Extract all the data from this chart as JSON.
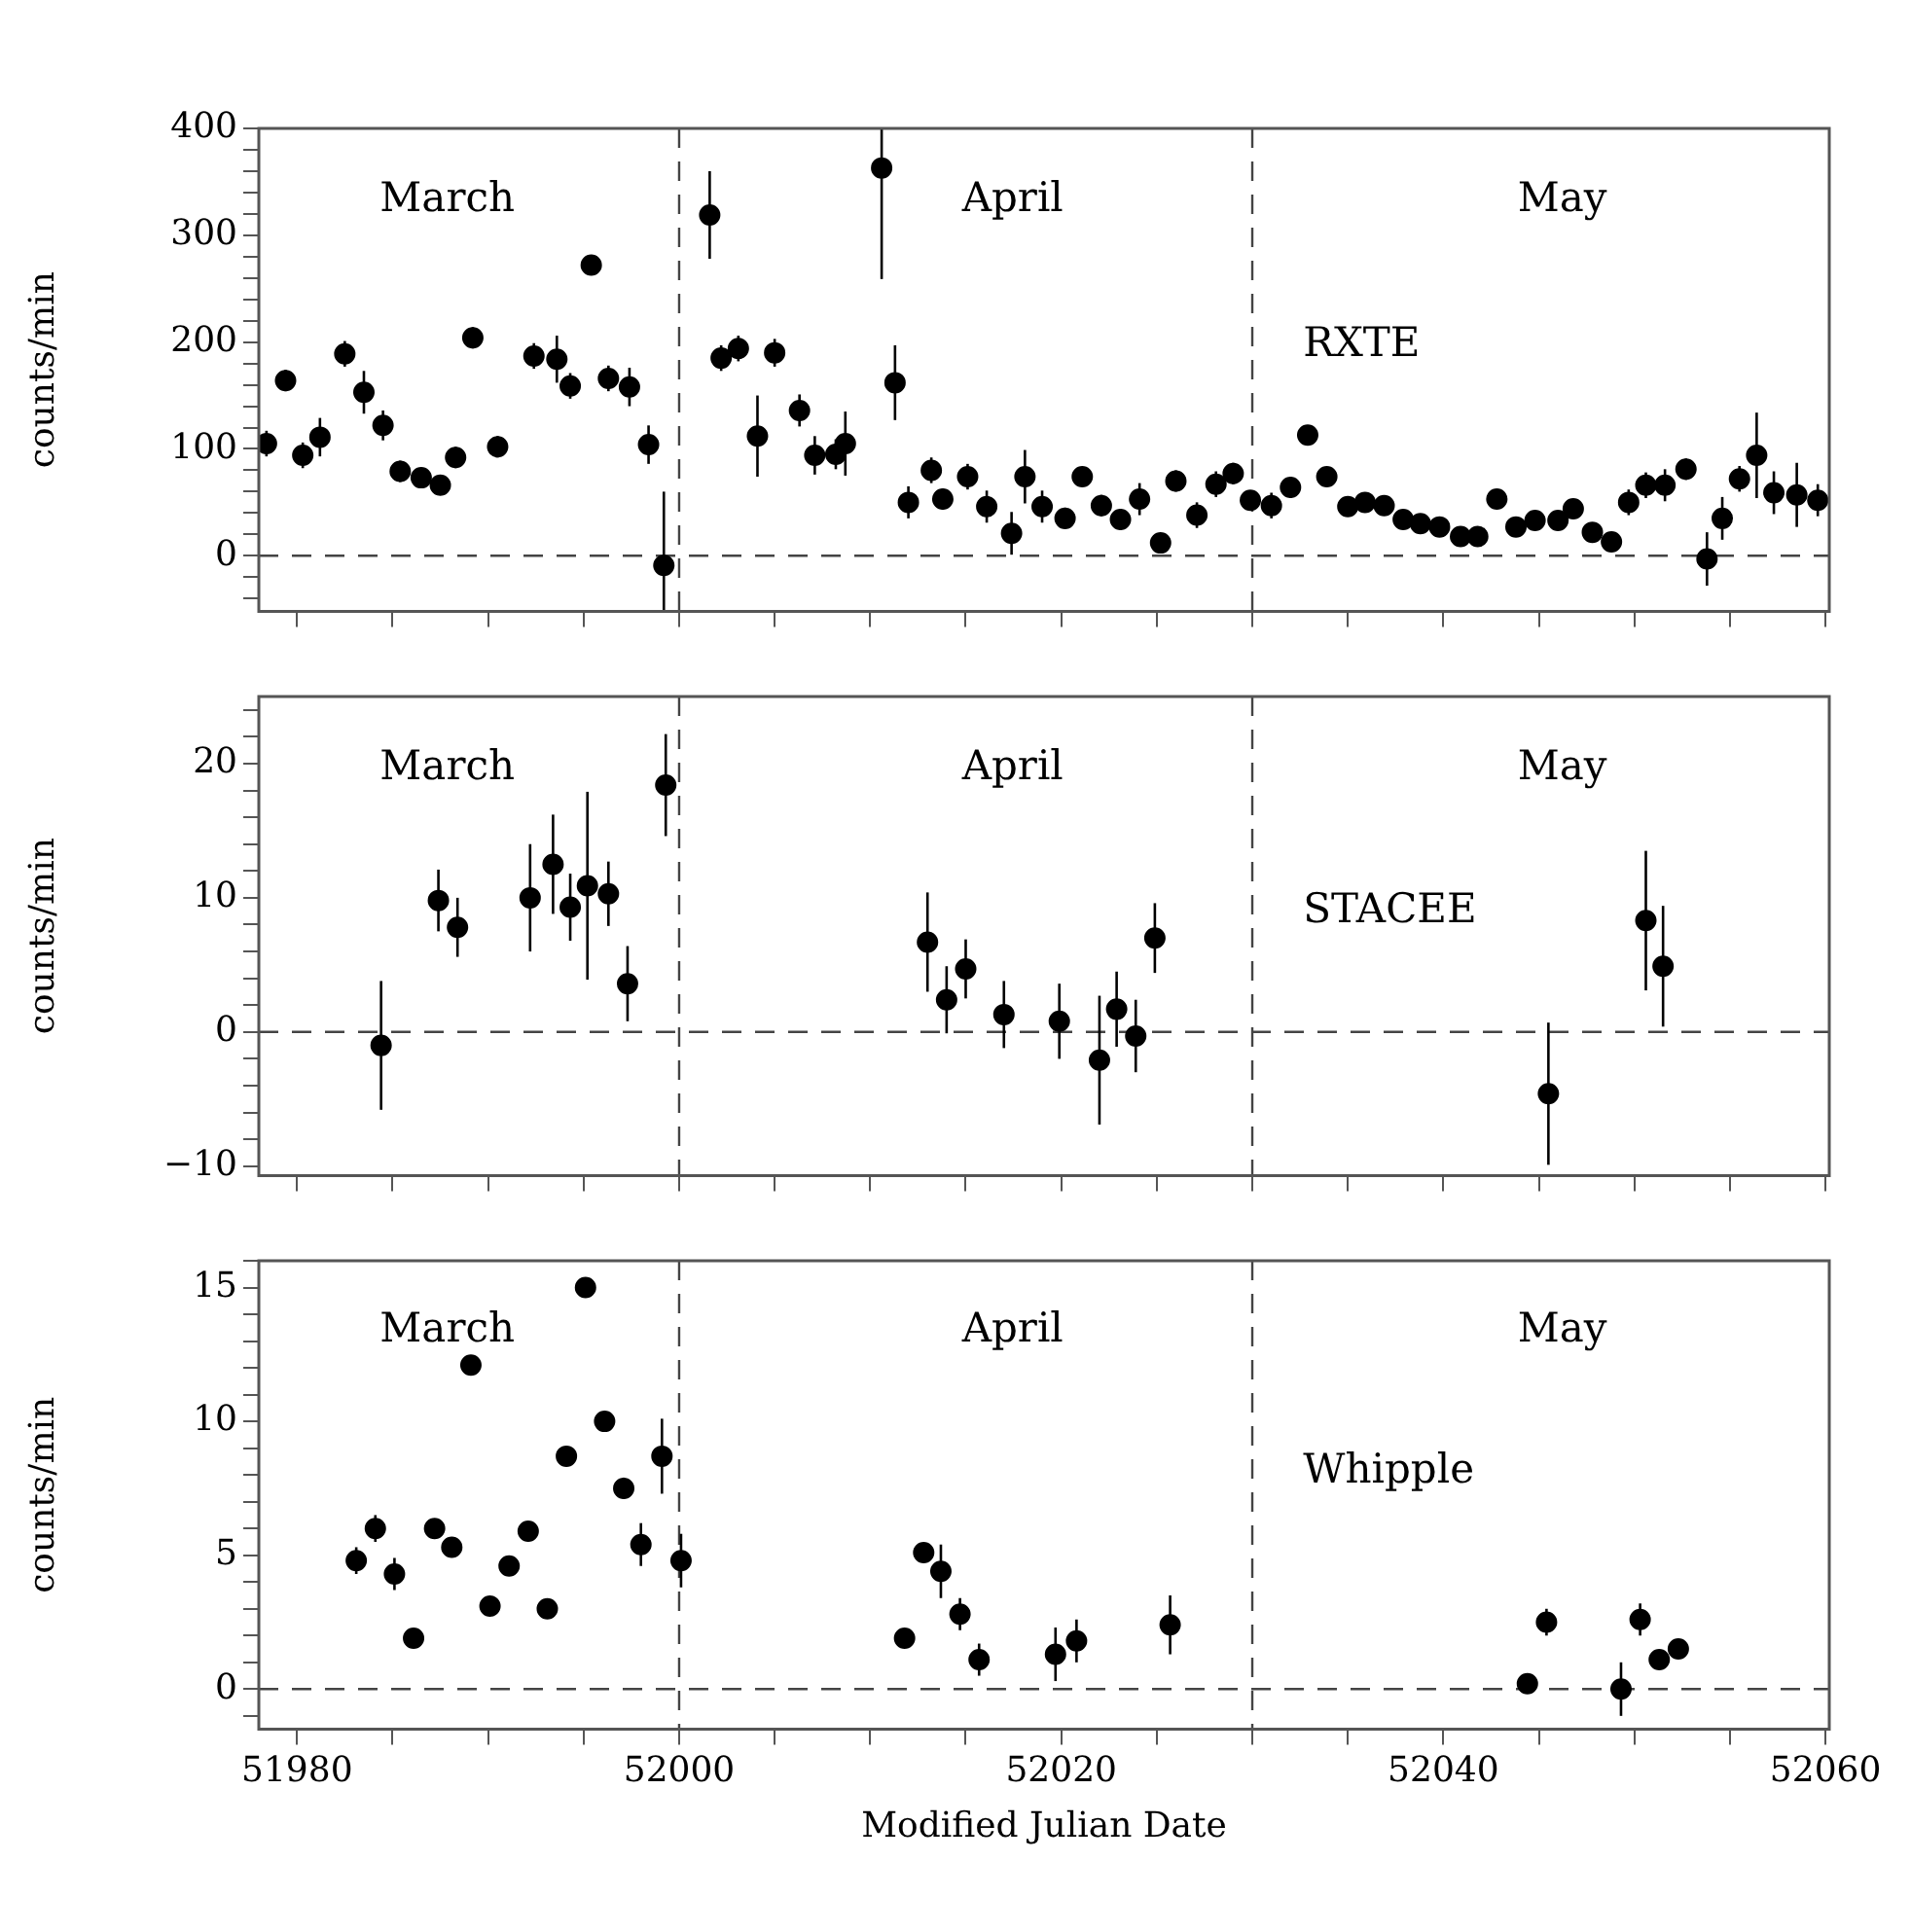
{
  "chart_data": [
    {
      "type": "scatter",
      "ylabel": "counts/min",
      "marker": "circle",
      "tick_labels": "y",
      "xlim": [
        51978,
        52060.2
      ],
      "ylim": [
        -52,
        400
      ],
      "xticks": [
        51980,
        {
          "value": 51985,
          "label": null
        },
        {
          "value": 51990,
          "label": null
        },
        {
          "value": 51995,
          "label": null
        },
        52000,
        {
          "value": 52005,
          "label": null
        },
        {
          "value": 52010,
          "label": null
        },
        {
          "value": 52015,
          "label": null
        },
        52020,
        {
          "value": 52025,
          "label": null
        },
        {
          "value": 52030,
          "label": null
        },
        {
          "value": 52035,
          "label": null
        },
        52040,
        {
          "value": 52045,
          "label": null
        },
        {
          "value": 52050,
          "label": null
        },
        {
          "value": 52055,
          "label": null
        },
        52060
      ],
      "yticks": [
        {
          "value": -40,
          "label": null
        },
        {
          "value": -20,
          "label": null
        },
        0,
        {
          "value": 20,
          "label": null
        },
        {
          "value": 40,
          "label": null
        },
        {
          "value": 60,
          "label": null
        },
        {
          "value": 80,
          "label": null
        },
        100,
        {
          "value": 120,
          "label": null
        },
        {
          "value": 140,
          "label": null
        },
        {
          "value": 160,
          "label": null
        },
        {
          "value": 180,
          "label": null
        },
        200,
        {
          "value": 220,
          "label": null
        },
        {
          "value": 240,
          "label": null
        },
        {
          "value": 260,
          "label": null
        },
        {
          "value": 280,
          "label": null
        },
        300,
        {
          "value": 320,
          "label": null
        },
        {
          "value": 340,
          "label": null
        },
        {
          "value": 360,
          "label": null
        },
        {
          "value": 380,
          "label": null
        },
        400
      ],
      "ref_lines": [
        {
          "axis": "y",
          "value": 0,
          "line_style": "dashed"
        },
        {
          "axis": "x",
          "value": 52000,
          "line_style": "dashed"
        },
        {
          "axis": "x",
          "value": 52030,
          "line_style": "dashed"
        }
      ],
      "annotations": [
        "March",
        "April",
        "May",
        "RXTE"
      ],
      "series": [
        {
          "color": "#000000",
          "x": [
            51978.4,
            51979.4,
            51980.3,
            51981.2,
            51982.5,
            51983.5,
            51984.5,
            51985.4,
            51986.5,
            51987.5,
            51988.3,
            51989.2,
            51990.5,
            51992.4,
            51993.6,
            51994.3,
            51995.4,
            51996.3,
            51997.4,
            51998.4,
            51999.2,
            52001.6,
            52002.2,
            52003.1,
            52004.1,
            52005,
            52006.3,
            52007.1,
            52008.2,
            52008.7,
            52010.6,
            52011.3,
            52012,
            52013.2,
            52013.8,
            52015.1,
            52016.1,
            52017.4,
            52018.1,
            52019,
            52020.2,
            52021.1,
            52022.1,
            52023.1,
            52024.1,
            52025.2,
            52026,
            52027.1,
            52028.1,
            52029,
            52029.9,
            52031,
            52032,
            52032.9,
            52033.9,
            52035,
            52035.9,
            52036.9,
            52037.9,
            52038.8,
            52039.8,
            52040.9,
            52041.8,
            52042.8,
            52043.8,
            52044.8,
            52046,
            52046.8,
            52047.8,
            52048.8,
            52049.7,
            52050.6,
            52051.6,
            52052.7,
            52053.8,
            52054.6,
            52055.5,
            52056.4,
            52057.3,
            52058.5,
            52059.6
          ],
          "values": [
            105,
            164,
            94,
            111,
            189,
            153,
            122,
            79,
            73,
            66,
            92,
            204,
            102,
            187,
            184,
            159,
            272,
            166,
            158,
            104,
            -9,
            319,
            185,
            194,
            112,
            190,
            136,
            94,
            95,
            105,
            363,
            162,
            50,
            80,
            53,
            74,
            46,
            21,
            74,
            46,
            35,
            74,
            47,
            34,
            53,
            12,
            70,
            38,
            67,
            77,
            52,
            47,
            64,
            113,
            74,
            46,
            50,
            47,
            34,
            30,
            27,
            18,
            18,
            53,
            27,
            33,
            33,
            44,
            22,
            13,
            50,
            66,
            66,
            81,
            -3,
            35,
            72,
            94,
            59,
            57,
            52
          ],
          "errors": [
            12,
            10,
            12,
            18,
            12,
            20,
            14,
            10,
            8,
            6,
            10,
            10,
            10,
            12,
            22,
            12,
            8,
            12,
            18,
            18,
            [
              -52,
              60
            ],
            41,
            12,
            12,
            38,
            13,
            15,
            18,
            14,
            30,
            [
              259,
              400
            ],
            35,
            15,
            12,
            10,
            12,
            15,
            20,
            25,
            15,
            10,
            8,
            10,
            10,
            15,
            8,
            10,
            12,
            12,
            10,
            8,
            12,
            10,
            5,
            8,
            8,
            5,
            6,
            6,
            5,
            6,
            5,
            4,
            8,
            5,
            5,
            8,
            6,
            5,
            5,
            12,
            12,
            15,
            10,
            25,
            20,
            12,
            40,
            20,
            30,
            15
          ]
        }
      ]
    },
    {
      "type": "scatter",
      "ylabel": "counts/min",
      "marker": "circle",
      "tick_labels": "y",
      "xlim": [
        51978,
        52060.2
      ],
      "ylim": [
        -10.7,
        25
      ],
      "xticks": [
        51980,
        {
          "value": 51985,
          "label": null
        },
        {
          "value": 51990,
          "label": null
        },
        {
          "value": 51995,
          "label": null
        },
        52000,
        {
          "value": 52005,
          "label": null
        },
        {
          "value": 52010,
          "label": null
        },
        {
          "value": 52015,
          "label": null
        },
        52020,
        {
          "value": 52025,
          "label": null
        },
        {
          "value": 52030,
          "label": null
        },
        {
          "value": 52035,
          "label": null
        },
        52040,
        {
          "value": 52045,
          "label": null
        },
        {
          "value": 52050,
          "label": null
        },
        {
          "value": 52055,
          "label": null
        },
        52060
      ],
      "yticks": [
        {
          "value": -10,
          "label": "−10"
        },
        {
          "value": -8,
          "label": null
        },
        {
          "value": -6,
          "label": null
        },
        {
          "value": -4,
          "label": null
        },
        {
          "value": -2,
          "label": null
        },
        0,
        {
          "value": 2,
          "label": null
        },
        {
          "value": 4,
          "label": null
        },
        {
          "value": 6,
          "label": null
        },
        {
          "value": 8,
          "label": null
        },
        10,
        {
          "value": 12,
          "label": null
        },
        {
          "value": 14,
          "label": null
        },
        {
          "value": 16,
          "label": null
        },
        {
          "value": 18,
          "label": null
        },
        20,
        {
          "value": 22,
          "label": null
        },
        {
          "value": 24,
          "label": null
        }
      ],
      "ref_lines": [
        {
          "axis": "y",
          "value": 0,
          "line_style": "dashed"
        },
        {
          "axis": "x",
          "value": 52000,
          "line_style": "dashed"
        },
        {
          "axis": "x",
          "value": 52030,
          "line_style": "dashed"
        }
      ],
      "annotations": [
        "March",
        "April",
        "May",
        "STACEE"
      ],
      "series": [
        {
          "color": "#000000",
          "x": [
            51984.4,
            51987.4,
            51988.4,
            51992.2,
            51993.4,
            51994.3,
            51995.2,
            51996.3,
            51997.3,
            51999.3,
            52013,
            52014,
            52015,
            52017,
            52019.9,
            52022,
            52022.9,
            52023.9,
            52024.9,
            52045.5,
            52050.6,
            52051.5
          ],
          "values": [
            -1,
            9.8,
            7.8,
            10,
            12.5,
            9.3,
            10.9,
            10.3,
            3.6,
            18.4,
            6.7,
            2.4,
            4.7,
            1.3,
            0.8,
            -2.1,
            1.7,
            -0.3,
            7,
            -4.6,
            8.3,
            4.9
          ],
          "errors": [
            4.8,
            2.3,
            2.2,
            4,
            3.7,
            2.5,
            7,
            2.4,
            2.8,
            3.8,
            3.7,
            2.5,
            2.2,
            2.5,
            2.8,
            4.8,
            2.8,
            2.7,
            2.6,
            5.3,
            5.2,
            4.5
          ]
        }
      ]
    },
    {
      "type": "scatter",
      "ylabel": "counts/min",
      "xlabel": "Modified Julian Date",
      "marker": "circle",
      "xlim": [
        51978,
        52060.2
      ],
      "ylim": [
        -1.5,
        16
      ],
      "xticks": [
        51980,
        {
          "value": 51985,
          "label": null
        },
        {
          "value": 51990,
          "label": null
        },
        {
          "value": 51995,
          "label": null
        },
        52000,
        {
          "value": 52005,
          "label": null
        },
        {
          "value": 52010,
          "label": null
        },
        {
          "value": 52015,
          "label": null
        },
        52020,
        {
          "value": 52025,
          "label": null
        },
        {
          "value": 52030,
          "label": null
        },
        {
          "value": 52035,
          "label": null
        },
        52040,
        {
          "value": 52045,
          "label": null
        },
        {
          "value": 52050,
          "label": null
        },
        {
          "value": 52055,
          "label": null
        },
        52060
      ],
      "yticks": [
        {
          "value": -1,
          "label": null
        },
        0,
        {
          "value": 1,
          "label": null
        },
        {
          "value": 2,
          "label": null
        },
        {
          "value": 3,
          "label": null
        },
        {
          "value": 4,
          "label": null
        },
        5,
        {
          "value": 6,
          "label": null
        },
        {
          "value": 7,
          "label": null
        },
        {
          "value": 8,
          "label": null
        },
        {
          "value": 9,
          "label": null
        },
        10,
        {
          "value": 11,
          "label": null
        },
        {
          "value": 12,
          "label": null
        },
        {
          "value": 13,
          "label": null
        },
        {
          "value": 14,
          "label": null
        },
        15,
        {
          "value": 16,
          "label": null
        }
      ],
      "ref_lines": [
        {
          "axis": "y",
          "value": 0,
          "line_style": "dashed"
        },
        {
          "axis": "x",
          "value": 52000,
          "line_style": "dashed"
        },
        {
          "axis": "x",
          "value": 52030,
          "line_style": "dashed"
        }
      ],
      "annotations": [
        "March",
        "April",
        "May",
        "Whipple"
      ],
      "series": [
        {
          "color": "#000000",
          "x": [
            51983.1,
            51984.1,
            51985.1,
            51986.1,
            51987.2,
            51988.1,
            51989.1,
            51990.1,
            51991.1,
            51992.1,
            51993.1,
            51994.1,
            51995.1,
            51996.1,
            51997.1,
            51998,
            51999.1,
            52000.1,
            52011.8,
            52012.8,
            52013.7,
            52014.7,
            52015.7,
            52019.7,
            52020.8,
            52025.7,
            52044.4,
            52045.4,
            52049.3,
            52050.3,
            52051.3,
            52052.3
          ],
          "values": [
            4.8,
            6,
            4.3,
            1.9,
            6,
            5.3,
            12.1,
            3.1,
            4.6,
            5.9,
            3,
            8.7,
            15,
            10,
            7.5,
            5.4,
            8.7,
            4.8,
            1.9,
            5.1,
            4.4,
            2.8,
            1.1,
            1.3,
            1.8,
            2.4,
            0.2,
            2.5,
            0,
            2.6,
            1.1,
            1.5
          ],
          "errors": [
            0.5,
            0.5,
            0.6,
            0.2,
            0.2,
            0.3,
            0.2,
            0.3,
            0.2,
            0.3,
            0.2,
            0.3,
            0.2,
            0.3,
            0.4,
            0.8,
            1.4,
            1,
            0.2,
            0.2,
            1,
            0.6,
            0.6,
            1,
            0.8,
            1.1,
            0.1,
            0.5,
            1,
            0.6,
            0.3,
            0.3
          ]
        }
      ]
    }
  ]
}
